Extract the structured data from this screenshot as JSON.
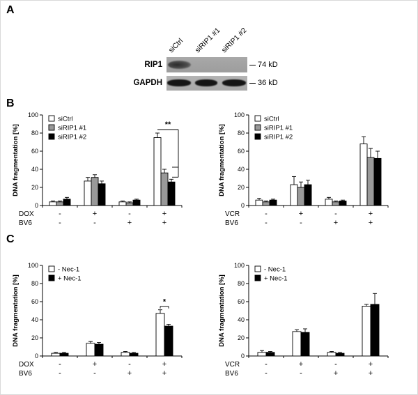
{
  "figure": {
    "panels": {
      "a": {
        "letter": "A",
        "lane_labels": [
          "siCtrl",
          "siRIP1 #1",
          "siRIP1 #2"
        ],
        "blot_rows": [
          {
            "label": "RIP1",
            "marker": "74 kD"
          },
          {
            "label": "GAPDH",
            "marker": "36 kD"
          }
        ]
      },
      "b": {
        "letter": "B"
      },
      "c": {
        "letter": "C"
      }
    }
  },
  "colors": {
    "series_white": "#ffffff",
    "series_gray": "#999999",
    "series_black": "#000000",
    "axis": "#000000"
  },
  "chart_data": [
    {
      "id": "b_dox",
      "type": "bar",
      "title": "",
      "ylabel": "DNA fragmentation [%]",
      "ylim": [
        0,
        100
      ],
      "yticks": [
        0,
        20,
        40,
        60,
        80,
        100
      ],
      "legend_position": "top-left",
      "series": [
        {
          "name": "siCtrl",
          "fill": "#ffffff",
          "values": [
            4,
            27,
            4,
            75
          ],
          "errors": [
            1,
            4,
            1,
            5
          ]
        },
        {
          "name": "siRIP1 #1",
          "fill": "#999999",
          "values": [
            4,
            31,
            3,
            36
          ],
          "errors": [
            1,
            3,
            1,
            4
          ]
        },
        {
          "name": "siRIP1 #2",
          "fill": "#000000",
          "values": [
            7,
            24,
            6,
            26
          ],
          "errors": [
            2,
            3,
            1,
            3
          ]
        }
      ],
      "conditions": [
        {
          "label": "DOX",
          "signs": [
            "-",
            "+",
            "-",
            "+"
          ]
        },
        {
          "label": "BV6",
          "signs": [
            "-",
            "-",
            "+",
            "+"
          ]
        }
      ],
      "significance": {
        "style": "multi",
        "group": 3,
        "label": "**"
      }
    },
    {
      "id": "b_vcr",
      "type": "bar",
      "title": "",
      "ylabel": "DNA fragmentation [%]",
      "ylim": [
        0,
        100
      ],
      "yticks": [
        0,
        20,
        40,
        60,
        80,
        100
      ],
      "legend_position": "top-left",
      "series": [
        {
          "name": "siCtrl",
          "fill": "#ffffff",
          "values": [
            6,
            23,
            7,
            68
          ],
          "errors": [
            2,
            9,
            2,
            8
          ]
        },
        {
          "name": "siRIP1 #1",
          "fill": "#999999",
          "values": [
            4,
            20,
            4,
            53
          ],
          "errors": [
            1,
            6,
            1,
            10
          ]
        },
        {
          "name": "siRIP1 #2",
          "fill": "#000000",
          "values": [
            6,
            23,
            5,
            52
          ],
          "errors": [
            1,
            5,
            1,
            8
          ]
        }
      ],
      "conditions": [
        {
          "label": "VCR",
          "signs": [
            "-",
            "+",
            "-",
            "+"
          ]
        },
        {
          "label": "BV6",
          "signs": [
            "-",
            "-",
            "+",
            "+"
          ]
        }
      ],
      "significance": null
    },
    {
      "id": "c_dox",
      "type": "bar",
      "title": "",
      "ylabel": "DNA fragmentation [%]",
      "ylim": [
        0,
        100
      ],
      "yticks": [
        0,
        20,
        40,
        60,
        80,
        100
      ],
      "legend_position": "top-left",
      "series": [
        {
          "name": "- Nec-1",
          "fill": "#ffffff",
          "values": [
            3,
            14,
            4,
            47
          ],
          "errors": [
            1,
            2,
            1,
            4
          ]
        },
        {
          "name": "+ Nec-1",
          "fill": "#000000",
          "values": [
            3,
            13,
            3,
            33
          ],
          "errors": [
            1,
            2,
            1,
            2
          ]
        }
      ],
      "conditions": [
        {
          "label": "DOX",
          "signs": [
            "-",
            "+",
            "-",
            "+"
          ]
        },
        {
          "label": "BV6",
          "signs": [
            "-",
            "-",
            "+",
            "+"
          ]
        }
      ],
      "significance": {
        "style": "pair",
        "group": 3,
        "label": "*"
      }
    },
    {
      "id": "c_vcr",
      "type": "bar",
      "title": "",
      "ylabel": "DNA fragmentation [%]",
      "ylim": [
        0,
        100
      ],
      "yticks": [
        0,
        20,
        40,
        60,
        80,
        100
      ],
      "legend_position": "top-left",
      "series": [
        {
          "name": "- Nec-1",
          "fill": "#ffffff",
          "values": [
            4,
            27,
            4,
            55
          ],
          "errors": [
            2,
            2,
            1,
            2
          ]
        },
        {
          "name": "+ Nec-1",
          "fill": "#000000",
          "values": [
            4,
            26,
            3,
            57
          ],
          "errors": [
            1,
            4,
            1,
            12
          ]
        }
      ],
      "conditions": [
        {
          "label": "VCR",
          "signs": [
            "-",
            "+",
            "-",
            "+"
          ]
        },
        {
          "label": "BV6",
          "signs": [
            "-",
            "-",
            "+",
            "+"
          ]
        }
      ],
      "significance": null
    }
  ]
}
